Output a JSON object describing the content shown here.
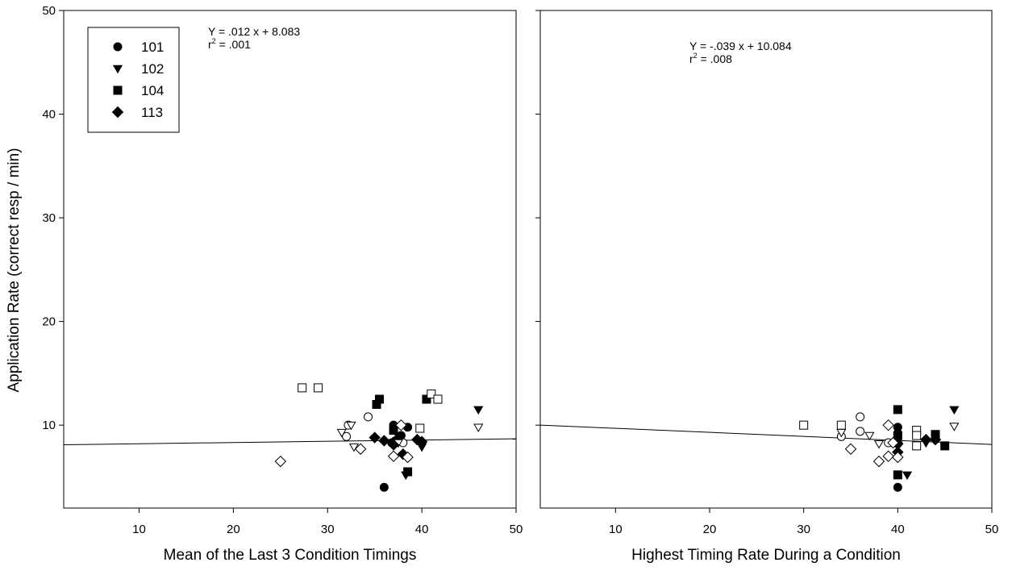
{
  "ylabel": "Application Rate (correct resp / min)",
  "legend": [
    {
      "label": "101",
      "shape": "circle"
    },
    {
      "label": "102",
      "shape": "triangle-down"
    },
    {
      "label": "104",
      "shape": "square"
    },
    {
      "label": "113",
      "shape": "diamond"
    }
  ],
  "chart_data": [
    {
      "type": "scatter",
      "xlabel": "Mean of the Last 3 Condition Timings",
      "ylabel": "Application Rate (correct resp / min)",
      "xlim": [
        2,
        50
      ],
      "ylim": [
        2,
        50
      ],
      "xticks": [
        10,
        20,
        30,
        40,
        50
      ],
      "yticks": [
        10,
        20,
        30,
        40,
        50
      ],
      "grid": false,
      "legend_position": "top-left",
      "equation": "Y = .012 x + 8.083",
      "r2_prefix": "r",
      "r2_sup": "2",
      "r2_value": " = .001",
      "regression": {
        "slope": 0.012,
        "intercept": 8.083,
        "x_range": [
          2,
          50
        ]
      },
      "series": [
        {
          "name": "101",
          "shape": "circle",
          "filled": true,
          "points": [
            [
              36,
              4
            ],
            [
              36.8,
              8.3
            ],
            [
              37,
              10
            ],
            [
              38.5,
              9.8
            ],
            [
              37.2,
              8.5
            ],
            [
              37.8,
              9
            ]
          ]
        },
        {
          "name": "101",
          "shape": "circle",
          "filled": false,
          "points": [
            [
              32,
              8.9
            ],
            [
              32.2,
              10
            ],
            [
              34.3,
              10.8
            ],
            [
              38,
              8.3
            ]
          ]
        },
        {
          "name": "102",
          "shape": "triangle-down",
          "filled": true,
          "points": [
            [
              46,
              11.5
            ],
            [
              38.3,
              5.2
            ],
            [
              40,
              7.9
            ],
            [
              37.5,
              8.9
            ]
          ]
        },
        {
          "name": "102",
          "shape": "triangle-down",
          "filled": false,
          "points": [
            [
              46,
              9.8
            ],
            [
              31.5,
              9.3
            ],
            [
              32.5,
              10
            ],
            [
              32.8,
              7.9
            ],
            [
              37.5,
              8.3
            ]
          ]
        },
        {
          "name": "104",
          "shape": "square",
          "filled": true,
          "points": [
            [
              35.2,
              12
            ],
            [
              35.5,
              12.5
            ],
            [
              40.5,
              12.5
            ],
            [
              37,
              9.5
            ],
            [
              38.5,
              5.5
            ]
          ]
        },
        {
          "name": "104",
          "shape": "square",
          "filled": false,
          "points": [
            [
              27.3,
              13.6
            ],
            [
              29,
              13.6
            ],
            [
              41,
              13
            ],
            [
              41.7,
              12.5
            ],
            [
              39.8,
              9.7
            ]
          ]
        },
        {
          "name": "113",
          "shape": "diamond",
          "filled": true,
          "points": [
            [
              35,
              8.8
            ],
            [
              36,
              8.5
            ],
            [
              37,
              8.1
            ],
            [
              38,
              7.2
            ],
            [
              39.5,
              8.6
            ],
            [
              40,
              8.4
            ]
          ]
        },
        {
          "name": "113",
          "shape": "diamond",
          "filled": false,
          "points": [
            [
              25,
              6.5
            ],
            [
              33.5,
              7.7
            ],
            [
              37,
              7
            ],
            [
              38.5,
              6.9
            ],
            [
              37.8,
              10
            ]
          ]
        }
      ]
    },
    {
      "type": "scatter",
      "xlabel": "Highest Timing Rate During a Condition",
      "xlim": [
        2,
        50
      ],
      "ylim": [
        2,
        50
      ],
      "xticks": [
        10,
        20,
        30,
        40,
        50
      ],
      "yticks": [
        10,
        20,
        30,
        40,
        50
      ],
      "grid": false,
      "equation": "Y = -.039 x + 10.084",
      "r2_prefix": "r",
      "r2_sup": "2",
      "r2_value": " = .008",
      "regression": {
        "slope": -0.039,
        "intercept": 10.084,
        "x_range": [
          2,
          50
        ]
      },
      "series": [
        {
          "name": "101",
          "shape": "circle",
          "filled": true,
          "points": [
            [
              40,
              4
            ],
            [
              40,
              9.8
            ],
            [
              40,
              9.2
            ],
            [
              40,
              8.8
            ],
            [
              40,
              8.2
            ]
          ]
        },
        {
          "name": "101",
          "shape": "circle",
          "filled": false,
          "points": [
            [
              34,
              8.9
            ],
            [
              36,
              10.8
            ],
            [
              36,
              9.4
            ],
            [
              39,
              8.3
            ]
          ]
        },
        {
          "name": "102",
          "shape": "triangle-down",
          "filled": true,
          "points": [
            [
              46,
              11.5
            ],
            [
              41,
              5.2
            ],
            [
              40,
              8.1
            ],
            [
              43,
              8.3
            ]
          ]
        },
        {
          "name": "102",
          "shape": "triangle-down",
          "filled": false,
          "points": [
            [
              46,
              9.9
            ],
            [
              34,
              9.3
            ],
            [
              37,
              9
            ],
            [
              38,
              8.2
            ]
          ]
        },
        {
          "name": "104",
          "shape": "square",
          "filled": true,
          "points": [
            [
              40,
              11.5
            ],
            [
              40,
              5.2
            ],
            [
              44,
              9.1
            ],
            [
              45,
              8
            ],
            [
              40,
              9
            ]
          ]
        },
        {
          "name": "104",
          "shape": "square",
          "filled": false,
          "points": [
            [
              30,
              10
            ],
            [
              34,
              10
            ],
            [
              42,
              9.5
            ],
            [
              42,
              9
            ],
            [
              42,
              8
            ]
          ]
        },
        {
          "name": "113",
          "shape": "diamond",
          "filled": true,
          "points": [
            [
              40,
              7.4
            ],
            [
              43,
              8.6
            ],
            [
              44,
              8.6
            ],
            [
              40,
              8.2
            ]
          ]
        },
        {
          "name": "113",
          "shape": "diamond",
          "filled": false,
          "points": [
            [
              35,
              7.7
            ],
            [
              38,
              6.5
            ],
            [
              39,
              7
            ],
            [
              40,
              6.9
            ],
            [
              39,
              10
            ],
            [
              39.5,
              8.3
            ]
          ]
        }
      ]
    }
  ]
}
